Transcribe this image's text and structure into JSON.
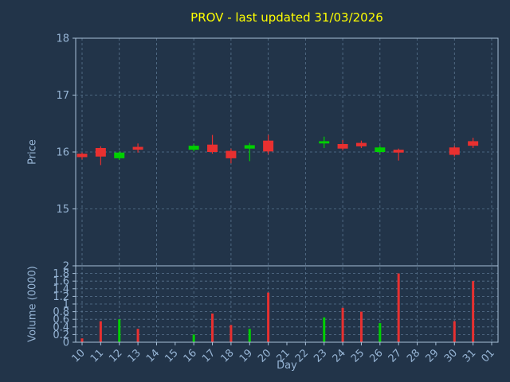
{
  "colors": {
    "background": "#223449",
    "text": "#96b4d4",
    "title_color": "#ffff00",
    "grid": "#5a7590",
    "spine": "#a8c0d8",
    "up": "#00d000",
    "down": "#e83030"
  },
  "chart_data": {
    "type": "candlestick",
    "title": "PROV - last updated 31/03/2026",
    "xlabel": "Day",
    "price_ylabel": "Price",
    "volume_ylabel": "Volume (0000)",
    "x_categories": [
      "10",
      "11",
      "12",
      "13",
      "14",
      "15",
      "16",
      "17",
      "18",
      "19",
      "20",
      "21",
      "22",
      "23",
      "24",
      "25",
      "26",
      "27",
      "28",
      "29",
      "30",
      "31",
      "01"
    ],
    "price_ylim": [
      14,
      18
    ],
    "price_yticks": [
      15,
      16,
      17,
      18
    ],
    "volume_ylim": [
      0,
      2
    ],
    "volume_yticks": [
      0,
      0.2,
      0.4,
      0.6,
      0.8,
      1,
      1.2,
      1.4,
      1.6,
      1.8,
      2
    ],
    "grid_x_every": 2,
    "legend": "none",
    "grid": "dashed",
    "candles": [
      {
        "day": "10",
        "open": 15.97,
        "high": 15.99,
        "low": 15.87,
        "close": 15.91,
        "volume": 0.1
      },
      {
        "day": "11",
        "open": 16.07,
        "high": 16.1,
        "low": 15.77,
        "close": 15.92,
        "volume": 0.55
      },
      {
        "day": "12",
        "open": 15.89,
        "high": 16.01,
        "low": 15.86,
        "close": 15.99,
        "volume": 0.6
      },
      {
        "day": "13",
        "open": 16.09,
        "high": 16.15,
        "low": 15.99,
        "close": 16.04,
        "volume": 0.35
      },
      {
        "day": "16",
        "open": 16.04,
        "high": 16.14,
        "low": 16.01,
        "close": 16.11,
        "volume": 0.2
      },
      {
        "day": "17",
        "open": 16.13,
        "high": 16.3,
        "low": 15.97,
        "close": 16.0,
        "volume": 0.75
      },
      {
        "day": "18",
        "open": 16.02,
        "high": 16.06,
        "low": 15.8,
        "close": 15.89,
        "volume": 0.45
      },
      {
        "day": "19",
        "open": 16.06,
        "high": 16.16,
        "low": 15.84,
        "close": 16.12,
        "volume": 0.35
      },
      {
        "day": "20",
        "open": 16.2,
        "high": 16.3,
        "low": 15.96,
        "close": 16.01,
        "volume": 1.3
      },
      {
        "day": "23",
        "open": 16.15,
        "high": 16.27,
        "low": 16.07,
        "close": 16.19,
        "volume": 0.65
      },
      {
        "day": "24",
        "open": 16.14,
        "high": 16.21,
        "low": 16.03,
        "close": 16.06,
        "volume": 0.9
      },
      {
        "day": "25",
        "open": 16.16,
        "high": 16.2,
        "low": 16.07,
        "close": 16.1,
        "volume": 0.8
      },
      {
        "day": "26",
        "open": 16.0,
        "high": 16.11,
        "low": 15.97,
        "close": 16.08,
        "volume": 0.5
      },
      {
        "day": "27",
        "open": 16.04,
        "high": 16.06,
        "low": 15.85,
        "close": 15.99,
        "volume": 1.8
      },
      {
        "day": "30",
        "open": 16.08,
        "high": 16.11,
        "low": 15.92,
        "close": 15.95,
        "volume": 0.55
      },
      {
        "day": "31",
        "open": 16.19,
        "high": 16.25,
        "low": 16.07,
        "close": 16.11,
        "volume": 1.6
      }
    ]
  }
}
